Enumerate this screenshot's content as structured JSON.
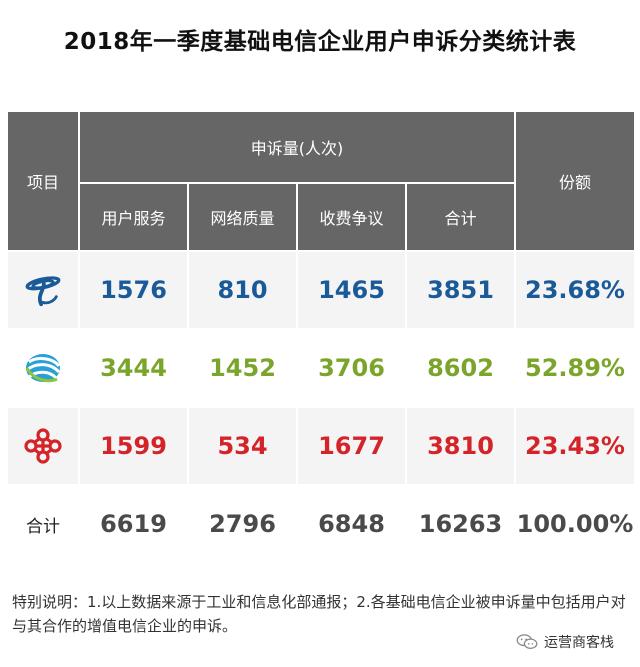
{
  "title": "2018年一季度基础电信企业用户申诉分类统计表",
  "table": {
    "col_item": "项目",
    "col_group": "申诉量(人次)",
    "col_share": "份额",
    "sub_headers": [
      "用户服务",
      "网络质量",
      "收费争议",
      "合计"
    ],
    "rows": [
      {
        "logo": "china-telecom-logo",
        "values": [
          "1576",
          "810",
          "1465",
          "3851"
        ],
        "share": "23.68%",
        "color": "#1b5a98"
      },
      {
        "logo": "china-mobile-logo",
        "values": [
          "3444",
          "1452",
          "3706",
          "8602"
        ],
        "share": "52.89%",
        "color": "#7aa52a"
      },
      {
        "logo": "china-unicom-logo",
        "values": [
          "1599",
          "534",
          "1677",
          "3810"
        ],
        "share": "23.43%",
        "color": "#d4242a"
      }
    ],
    "total": {
      "label": "合计",
      "values": [
        "6619",
        "2796",
        "6848",
        "16263"
      ],
      "share": "100.00%"
    }
  },
  "note": "特别说明：1.以上数据来源于工业和信息化部通报；2.各基础电信企业被申诉量中包括用户对与其合作的增值电信企业的申诉。",
  "brand": {
    "icon": "wechat-icon",
    "label": "运营商客栈"
  }
}
